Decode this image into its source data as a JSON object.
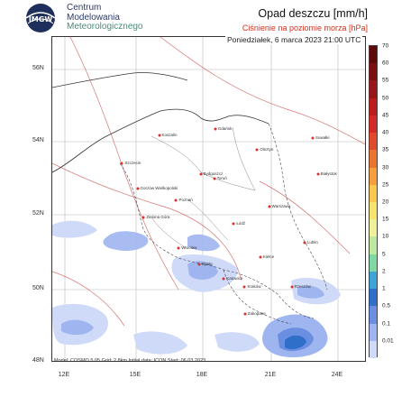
{
  "header": {
    "logo_initials": "IMGW",
    "org_name_line1": "Centrum",
    "org_name_line2": "Modelowania",
    "org_name_line3": "Meteorologicznego",
    "title": "Opad deszczu [mm/h]",
    "subtitle": "Ciśnienie na poziomie morza [hPa]",
    "datetime": "Poniedziałek, 6 marca 2023 21:00 UTC"
  },
  "map": {
    "lat_labels": [
      "56N",
      "54N",
      "52N",
      "50N",
      "48N"
    ],
    "lon_labels": [
      "12E",
      "15E",
      "18E",
      "21E",
      "24E"
    ],
    "credit": "Model: COSMO 5.05  Grid: 2.8km  Initial data: ICON  Start: 06.03.2023",
    "cities": [
      {
        "name": "Gdańsk",
        "lon": 18.65,
        "lat": 54.35
      },
      {
        "name": "Koszalin",
        "lon": 16.18,
        "lat": 54.19
      },
      {
        "name": "Olsztyn",
        "lon": 20.49,
        "lat": 53.78
      },
      {
        "name": "Suwałki",
        "lon": 22.93,
        "lat": 54.1
      },
      {
        "name": "Szczecin",
        "lon": 14.55,
        "lat": 53.43
      },
      {
        "name": "Bydgoszcz",
        "lon": 18.0,
        "lat": 53.12
      },
      {
        "name": "Toruń",
        "lon": 18.6,
        "lat": 53.01
      },
      {
        "name": "Białystok",
        "lon": 23.16,
        "lat": 53.13
      },
      {
        "name": "Gorzów Wielkopolski",
        "lon": 15.23,
        "lat": 52.73
      },
      {
        "name": "Poznań",
        "lon": 16.93,
        "lat": 52.41
      },
      {
        "name": "Warszawa",
        "lon": 21.01,
        "lat": 52.23
      },
      {
        "name": "Zielona Góra",
        "lon": 15.5,
        "lat": 51.94
      },
      {
        "name": "Łódź",
        "lon": 19.46,
        "lat": 51.76
      },
      {
        "name": "Wrocław",
        "lon": 17.04,
        "lat": 51.11
      },
      {
        "name": "Lublin",
        "lon": 22.57,
        "lat": 51.25
      },
      {
        "name": "Kielce",
        "lon": 20.63,
        "lat": 50.87
      },
      {
        "name": "Opole",
        "lon": 17.93,
        "lat": 50.67
      },
      {
        "name": "Katowice",
        "lon": 19.02,
        "lat": 50.26
      },
      {
        "name": "Kraków",
        "lon": 19.94,
        "lat": 50.06
      },
      {
        "name": "Rzeszów",
        "lon": 22.0,
        "lat": 50.04
      },
      {
        "name": "Zakopane",
        "lon": 19.95,
        "lat": 49.3
      }
    ]
  },
  "legend": {
    "unit": "mm/h",
    "levels": [
      "70",
      "60",
      "55",
      "50",
      "45",
      "40",
      "35",
      "30",
      "25",
      "20",
      "15",
      "10",
      "5",
      "2",
      "1",
      "0.5",
      "0.1",
      "0.01"
    ],
    "colors": [
      "#5c0a0a",
      "#7b1010",
      "#9a1515",
      "#b81c1c",
      "#d22828",
      "#e04a2c",
      "#eb7332",
      "#f59e3c",
      "#f9c84e",
      "#f8e36c",
      "#f0ef9a",
      "#bfe8a0",
      "#7fd7a2",
      "#3fa3d5",
      "#2f6fc9",
      "#6a8fe0",
      "#9fb5ef",
      "#cfdaf8"
    ]
  }
}
